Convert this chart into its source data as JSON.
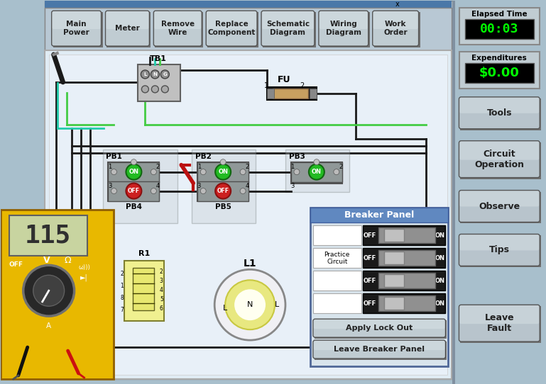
{
  "bg_color": "#a8bfcc",
  "toolbar_buttons": [
    "Main\nPower",
    "Meter",
    "Remove\nWire",
    "Replace\nComponent",
    "Schematic\nDiagram",
    "Wiring\nDiagram",
    "Work\nOrder"
  ],
  "right_buttons": [
    "Tools",
    "Circuit\nOperation",
    "Observe",
    "Tips",
    "Leave\nFault"
  ],
  "elapsed_time": "00:03",
  "expenditures": "$0.00",
  "breaker_panel_title": "Breaker Panel",
  "breaker_labels": [
    "",
    "Practice\nCircuit",
    "",
    ""
  ],
  "apply_lockout": "Apply Lock Out",
  "leave_breaker": "Leave Breaker Panel"
}
